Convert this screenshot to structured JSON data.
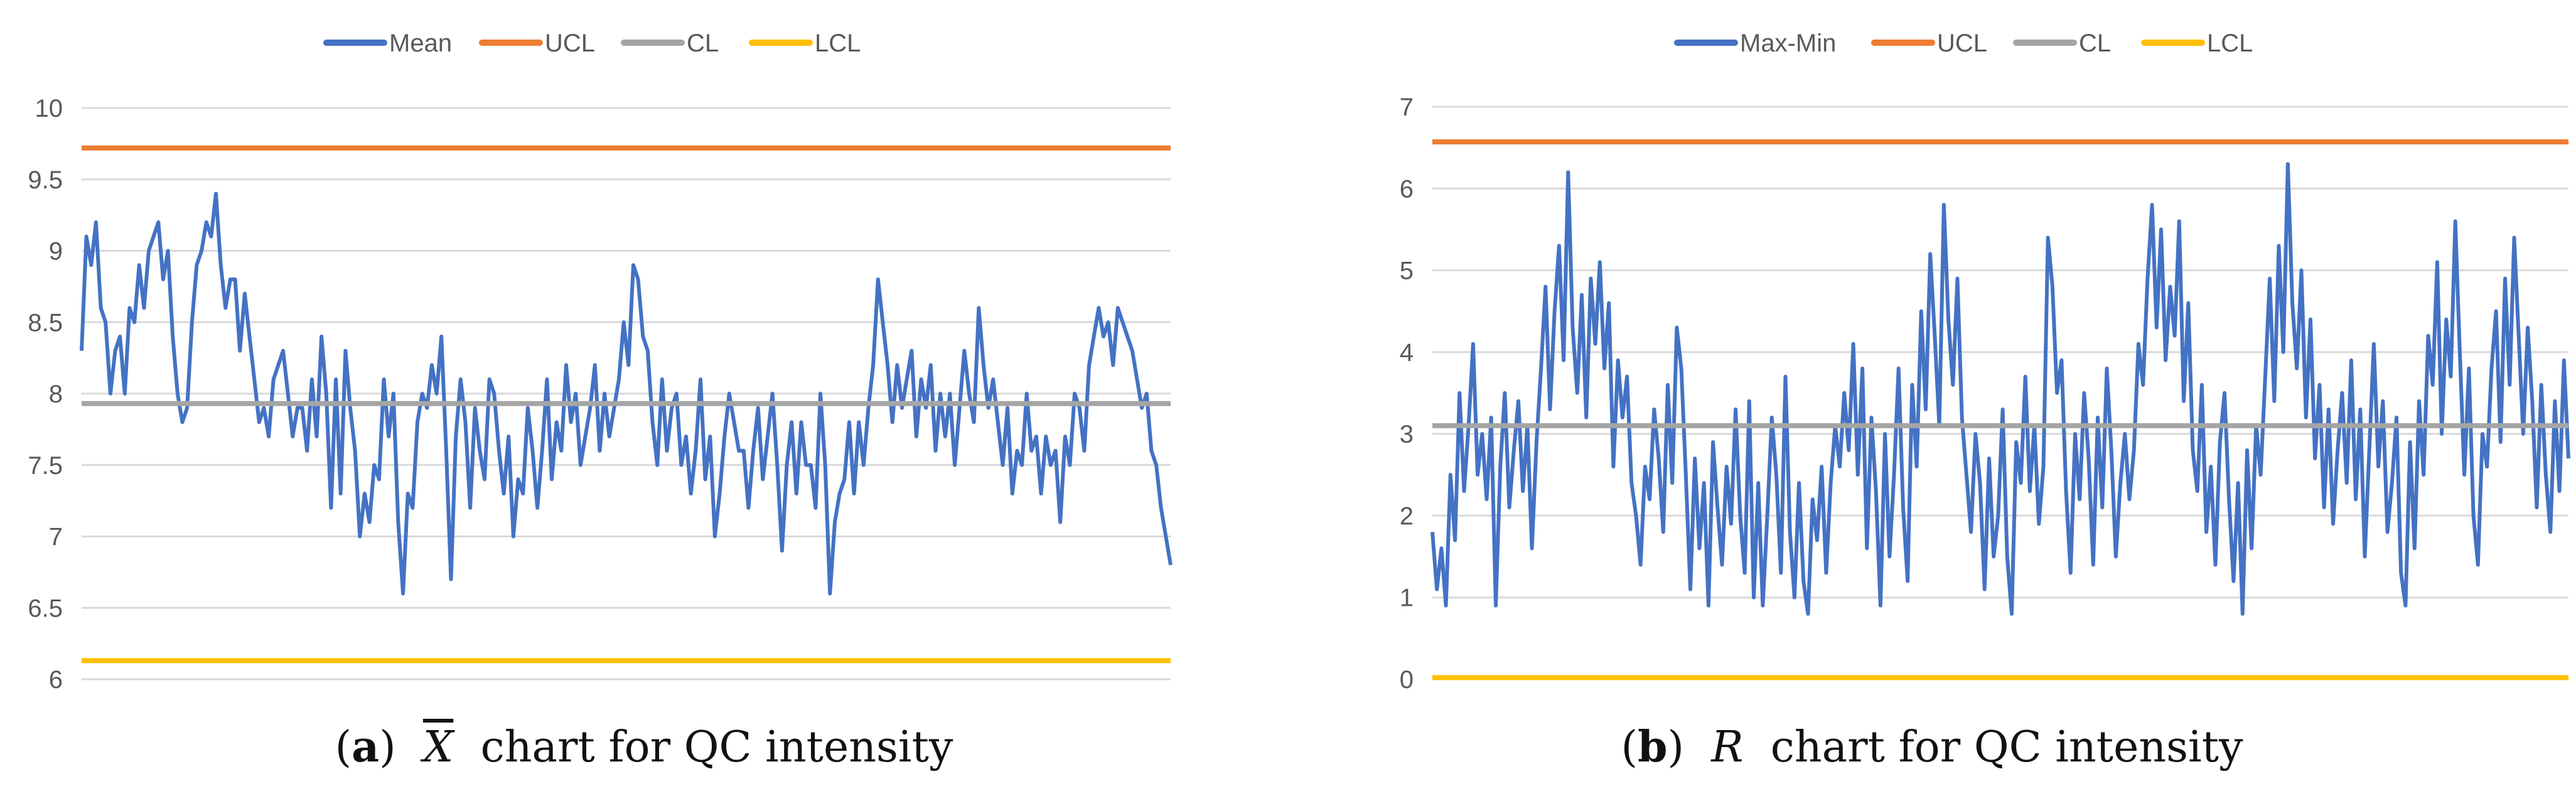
{
  "colors": {
    "series": "#4472C4",
    "ucl": "#ED7D31",
    "cl": "#A5A5A5",
    "lcl": "#FFC000",
    "grid": "#D9D9D9",
    "tick_text": "#595959"
  },
  "chart_data": [
    {
      "type": "line",
      "title": "",
      "xlabel": "",
      "ylabel": "",
      "ylim": [
        6,
        10
      ],
      "yticks": [
        "6",
        "6.5",
        "7",
        "7.5",
        "8",
        "8.5",
        "9",
        "9.5",
        "10"
      ],
      "grid": true,
      "legend_position": "top",
      "legend": [
        "Mean",
        "UCL",
        "CL",
        "LCL"
      ],
      "caption": {
        "tag": "a",
        "symbol": "X",
        "text": "chart for QC intensity"
      },
      "series": [
        {
          "name": "Mean",
          "values": [
            8.3,
            9.1,
            8.9,
            9.2,
            8.6,
            8.5,
            8.0,
            8.3,
            8.4,
            8.0,
            8.6,
            8.5,
            8.9,
            8.6,
            9.0,
            9.1,
            9.2,
            8.8,
            9.0,
            8.4,
            8.0,
            7.8,
            7.9,
            8.5,
            8.9,
            9.0,
            9.2,
            9.1,
            9.4,
            8.9,
            8.6,
            8.8,
            8.8,
            8.3,
            8.7,
            8.4,
            8.1,
            7.8,
            7.9,
            7.7,
            8.1,
            8.2,
            8.3,
            8.0,
            7.7,
            7.9,
            7.9,
            7.6,
            8.1,
            7.7,
            8.4,
            8.0,
            7.2,
            8.1,
            7.3,
            8.3,
            7.9,
            7.6,
            7.0,
            7.3,
            7.1,
            7.5,
            7.4,
            8.1,
            7.7,
            8.0,
            7.1,
            6.6,
            7.3,
            7.2,
            7.8,
            8.0,
            7.9,
            8.2,
            8.0,
            8.4,
            7.6,
            6.7,
            7.7,
            8.1,
            7.8,
            7.2,
            7.9,
            7.6,
            7.4,
            8.1,
            8.0,
            7.6,
            7.3,
            7.7,
            7.0,
            7.4,
            7.3,
            7.9,
            7.6,
            7.2,
            7.6,
            8.1,
            7.4,
            7.8,
            7.6,
            8.2,
            7.8,
            8.0,
            7.5,
            7.7,
            7.9,
            8.2,
            7.6,
            8.0,
            7.7,
            7.9,
            8.1,
            8.5,
            8.2,
            8.9,
            8.8,
            8.4,
            8.3,
            7.8,
            7.5,
            8.1,
            7.6,
            7.9,
            8.0,
            7.5,
            7.7,
            7.3,
            7.6,
            8.1,
            7.4,
            7.7,
            7.0,
            7.3,
            7.7,
            8.0,
            7.8,
            7.6,
            7.6,
            7.2,
            7.6,
            7.9,
            7.4,
            7.7,
            8.0,
            7.5,
            6.9,
            7.5,
            7.8,
            7.3,
            7.8,
            7.5,
            7.5,
            7.2,
            8.0,
            7.5,
            6.6,
            7.1,
            7.3,
            7.4,
            7.8,
            7.3,
            7.8,
            7.5,
            7.9,
            8.2,
            8.8,
            8.5,
            8.2,
            7.8,
            8.2,
            7.9,
            8.1,
            8.3,
            7.7,
            8.1,
            7.9,
            8.2,
            7.6,
            8.0,
            7.7,
            8.0,
            7.5,
            7.9,
            8.3,
            8.0,
            7.8,
            8.6,
            8.2,
            7.9,
            8.1,
            7.8,
            7.5,
            7.9,
            7.3,
            7.6,
            7.5,
            8.0,
            7.6,
            7.7,
            7.3,
            7.7,
            7.5,
            7.6,
            7.1,
            7.7,
            7.5,
            8.0,
            7.9,
            7.6,
            8.2,
            8.4,
            8.6,
            8.4,
            8.5,
            8.2,
            8.6,
            8.5,
            8.4,
            8.3,
            8.1,
            7.9,
            8.0,
            7.6,
            7.5,
            7.2,
            7.0,
            6.8
          ]
        },
        {
          "name": "UCL",
          "values": [
            9.72,
            9.72
          ]
        },
        {
          "name": "CL",
          "values": [
            7.93,
            7.93
          ]
        },
        {
          "name": "LCL",
          "values": [
            6.13,
            6.13
          ]
        }
      ]
    },
    {
      "type": "line",
      "title": "",
      "xlabel": "",
      "ylabel": "",
      "ylim": [
        0,
        7
      ],
      "yticks": [
        "0",
        "1",
        "2",
        "3",
        "4",
        "5",
        "6",
        "7"
      ],
      "grid": true,
      "legend_position": "top",
      "legend": [
        "Max-Min",
        "UCL",
        "CL",
        "LCL"
      ],
      "caption": {
        "tag": "b",
        "symbol": "R",
        "text": "chart for QC intensity"
      },
      "series": [
        {
          "name": "Max-Min",
          "values": [
            1.8,
            1.1,
            1.6,
            0.9,
            2.5,
            1.7,
            3.5,
            2.3,
            3.1,
            4.1,
            2.5,
            3.0,
            2.2,
            3.2,
            0.9,
            2.6,
            3.5,
            2.1,
            2.8,
            3.4,
            2.3,
            3.1,
            1.6,
            2.9,
            3.8,
            4.8,
            3.3,
            4.5,
            5.3,
            3.9,
            6.2,
            4.3,
            3.5,
            4.7,
            3.2,
            4.9,
            4.1,
            5.1,
            3.8,
            4.6,
            2.6,
            3.9,
            3.2,
            3.7,
            2.4,
            2.0,
            1.4,
            2.6,
            2.2,
            3.3,
            2.7,
            1.8,
            3.6,
            2.4,
            4.3,
            3.8,
            2.5,
            1.1,
            2.7,
            1.6,
            2.4,
            0.9,
            2.9,
            2.1,
            1.4,
            2.6,
            1.9,
            3.3,
            2.0,
            1.3,
            3.4,
            1.0,
            2.4,
            0.9,
            2.0,
            3.2,
            2.5,
            1.3,
            3.7,
            1.8,
            1.0,
            2.4,
            1.2,
            0.8,
            2.2,
            1.7,
            2.6,
            1.3,
            2.4,
            3.1,
            2.6,
            3.5,
            2.8,
            4.1,
            2.5,
            3.8,
            1.6,
            3.2,
            2.3,
            0.9,
            3.0,
            1.5,
            2.5,
            3.8,
            2.1,
            1.2,
            3.6,
            2.6,
            4.5,
            3.3,
            5.2,
            4.2,
            3.1,
            5.8,
            4.4,
            3.6,
            4.9,
            3.2,
            2.5,
            1.8,
            3.0,
            2.4,
            1.1,
            2.7,
            1.5,
            2.0,
            3.3,
            1.5,
            0.8,
            2.9,
            2.4,
            3.7,
            2.3,
            3.1,
            1.9,
            2.6,
            5.4,
            4.8,
            3.5,
            3.9,
            2.3,
            1.3,
            3.0,
            2.2,
            3.5,
            2.7,
            1.4,
            3.2,
            2.1,
            3.8,
            2.8,
            1.5,
            2.4,
            3.0,
            2.2,
            2.8,
            4.1,
            3.6,
            4.9,
            5.8,
            4.3,
            5.5,
            3.9,
            4.8,
            4.2,
            5.6,
            3.4,
            4.6,
            2.8,
            2.3,
            3.6,
            1.8,
            2.6,
            1.4,
            2.9,
            3.5,
            2.2,
            1.2,
            2.4,
            0.8,
            2.8,
            1.6,
            3.1,
            2.5,
            3.7,
            4.9,
            3.4,
            5.3,
            4.0,
            6.3,
            4.6,
            3.8,
            5.0,
            3.2,
            4.4,
            2.7,
            3.6,
            2.1,
            3.3,
            1.9,
            2.8,
            3.5,
            2.4,
            3.9,
            2.2,
            3.3,
            1.5,
            2.8,
            4.1,
            2.6,
            3.4,
            1.8,
            2.4,
            3.2,
            1.3,
            0.9,
            2.9,
            1.6,
            3.4,
            2.5,
            4.2,
            3.6,
            5.1,
            3.0,
            4.4,
            3.7,
            5.6,
            4.0,
            2.5,
            3.8,
            2.0,
            1.4,
            3.0,
            2.6,
            3.8,
            4.5,
            2.9,
            4.9,
            3.6,
            5.4,
            4.2,
            3.0,
            4.3,
            3.4,
            2.1,
            3.6,
            2.5,
            1.8,
            3.4,
            2.3,
            3.9,
            2.7
          ]
        },
        {
          "name": "UCL",
          "values": [
            6.57,
            6.57
          ]
        },
        {
          "name": "CL",
          "values": [
            3.1,
            3.1
          ]
        },
        {
          "name": "LCL",
          "values": [
            0.02,
            0.02
          ]
        }
      ]
    }
  ]
}
